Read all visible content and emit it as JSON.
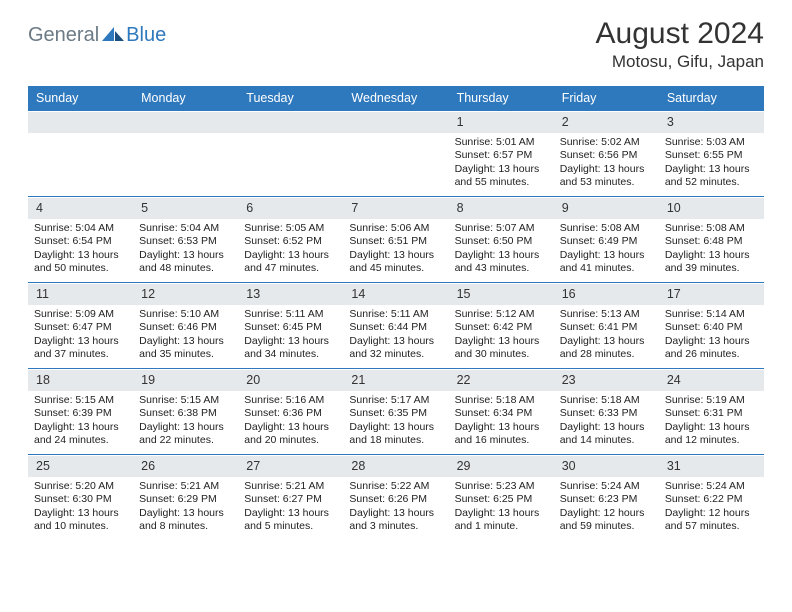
{
  "brand": {
    "text1": "General",
    "text2": "Blue"
  },
  "title": "August 2024",
  "location": "Motosu, Gifu, Japan",
  "headerColor": "#2e78bd",
  "dayHeaderBg": "#e6e9ec",
  "weekdays": [
    "Sunday",
    "Monday",
    "Tuesday",
    "Wednesday",
    "Thursday",
    "Friday",
    "Saturday"
  ],
  "weeks": [
    [
      {
        "n": "",
        "sunrise": "",
        "sunset": "",
        "daylight": ""
      },
      {
        "n": "",
        "sunrise": "",
        "sunset": "",
        "daylight": ""
      },
      {
        "n": "",
        "sunrise": "",
        "sunset": "",
        "daylight": ""
      },
      {
        "n": "",
        "sunrise": "",
        "sunset": "",
        "daylight": ""
      },
      {
        "n": "1",
        "sunrise": "Sunrise: 5:01 AM",
        "sunset": "Sunset: 6:57 PM",
        "daylight": "Daylight: 13 hours and 55 minutes."
      },
      {
        "n": "2",
        "sunrise": "Sunrise: 5:02 AM",
        "sunset": "Sunset: 6:56 PM",
        "daylight": "Daylight: 13 hours and 53 minutes."
      },
      {
        "n": "3",
        "sunrise": "Sunrise: 5:03 AM",
        "sunset": "Sunset: 6:55 PM",
        "daylight": "Daylight: 13 hours and 52 minutes."
      }
    ],
    [
      {
        "n": "4",
        "sunrise": "Sunrise: 5:04 AM",
        "sunset": "Sunset: 6:54 PM",
        "daylight": "Daylight: 13 hours and 50 minutes."
      },
      {
        "n": "5",
        "sunrise": "Sunrise: 5:04 AM",
        "sunset": "Sunset: 6:53 PM",
        "daylight": "Daylight: 13 hours and 48 minutes."
      },
      {
        "n": "6",
        "sunrise": "Sunrise: 5:05 AM",
        "sunset": "Sunset: 6:52 PM",
        "daylight": "Daylight: 13 hours and 47 minutes."
      },
      {
        "n": "7",
        "sunrise": "Sunrise: 5:06 AM",
        "sunset": "Sunset: 6:51 PM",
        "daylight": "Daylight: 13 hours and 45 minutes."
      },
      {
        "n": "8",
        "sunrise": "Sunrise: 5:07 AM",
        "sunset": "Sunset: 6:50 PM",
        "daylight": "Daylight: 13 hours and 43 minutes."
      },
      {
        "n": "9",
        "sunrise": "Sunrise: 5:08 AM",
        "sunset": "Sunset: 6:49 PM",
        "daylight": "Daylight: 13 hours and 41 minutes."
      },
      {
        "n": "10",
        "sunrise": "Sunrise: 5:08 AM",
        "sunset": "Sunset: 6:48 PM",
        "daylight": "Daylight: 13 hours and 39 minutes."
      }
    ],
    [
      {
        "n": "11",
        "sunrise": "Sunrise: 5:09 AM",
        "sunset": "Sunset: 6:47 PM",
        "daylight": "Daylight: 13 hours and 37 minutes."
      },
      {
        "n": "12",
        "sunrise": "Sunrise: 5:10 AM",
        "sunset": "Sunset: 6:46 PM",
        "daylight": "Daylight: 13 hours and 35 minutes."
      },
      {
        "n": "13",
        "sunrise": "Sunrise: 5:11 AM",
        "sunset": "Sunset: 6:45 PM",
        "daylight": "Daylight: 13 hours and 34 minutes."
      },
      {
        "n": "14",
        "sunrise": "Sunrise: 5:11 AM",
        "sunset": "Sunset: 6:44 PM",
        "daylight": "Daylight: 13 hours and 32 minutes."
      },
      {
        "n": "15",
        "sunrise": "Sunrise: 5:12 AM",
        "sunset": "Sunset: 6:42 PM",
        "daylight": "Daylight: 13 hours and 30 minutes."
      },
      {
        "n": "16",
        "sunrise": "Sunrise: 5:13 AM",
        "sunset": "Sunset: 6:41 PM",
        "daylight": "Daylight: 13 hours and 28 minutes."
      },
      {
        "n": "17",
        "sunrise": "Sunrise: 5:14 AM",
        "sunset": "Sunset: 6:40 PM",
        "daylight": "Daylight: 13 hours and 26 minutes."
      }
    ],
    [
      {
        "n": "18",
        "sunrise": "Sunrise: 5:15 AM",
        "sunset": "Sunset: 6:39 PM",
        "daylight": "Daylight: 13 hours and 24 minutes."
      },
      {
        "n": "19",
        "sunrise": "Sunrise: 5:15 AM",
        "sunset": "Sunset: 6:38 PM",
        "daylight": "Daylight: 13 hours and 22 minutes."
      },
      {
        "n": "20",
        "sunrise": "Sunrise: 5:16 AM",
        "sunset": "Sunset: 6:36 PM",
        "daylight": "Daylight: 13 hours and 20 minutes."
      },
      {
        "n": "21",
        "sunrise": "Sunrise: 5:17 AM",
        "sunset": "Sunset: 6:35 PM",
        "daylight": "Daylight: 13 hours and 18 minutes."
      },
      {
        "n": "22",
        "sunrise": "Sunrise: 5:18 AM",
        "sunset": "Sunset: 6:34 PM",
        "daylight": "Daylight: 13 hours and 16 minutes."
      },
      {
        "n": "23",
        "sunrise": "Sunrise: 5:18 AM",
        "sunset": "Sunset: 6:33 PM",
        "daylight": "Daylight: 13 hours and 14 minutes."
      },
      {
        "n": "24",
        "sunrise": "Sunrise: 5:19 AM",
        "sunset": "Sunset: 6:31 PM",
        "daylight": "Daylight: 13 hours and 12 minutes."
      }
    ],
    [
      {
        "n": "25",
        "sunrise": "Sunrise: 5:20 AM",
        "sunset": "Sunset: 6:30 PM",
        "daylight": "Daylight: 13 hours and 10 minutes."
      },
      {
        "n": "26",
        "sunrise": "Sunrise: 5:21 AM",
        "sunset": "Sunset: 6:29 PM",
        "daylight": "Daylight: 13 hours and 8 minutes."
      },
      {
        "n": "27",
        "sunrise": "Sunrise: 5:21 AM",
        "sunset": "Sunset: 6:27 PM",
        "daylight": "Daylight: 13 hours and 5 minutes."
      },
      {
        "n": "28",
        "sunrise": "Sunrise: 5:22 AM",
        "sunset": "Sunset: 6:26 PM",
        "daylight": "Daylight: 13 hours and 3 minutes."
      },
      {
        "n": "29",
        "sunrise": "Sunrise: 5:23 AM",
        "sunset": "Sunset: 6:25 PM",
        "daylight": "Daylight: 13 hours and 1 minute."
      },
      {
        "n": "30",
        "sunrise": "Sunrise: 5:24 AM",
        "sunset": "Sunset: 6:23 PM",
        "daylight": "Daylight: 12 hours and 59 minutes."
      },
      {
        "n": "31",
        "sunrise": "Sunrise: 5:24 AM",
        "sunset": "Sunset: 6:22 PM",
        "daylight": "Daylight: 12 hours and 57 minutes."
      }
    ]
  ]
}
